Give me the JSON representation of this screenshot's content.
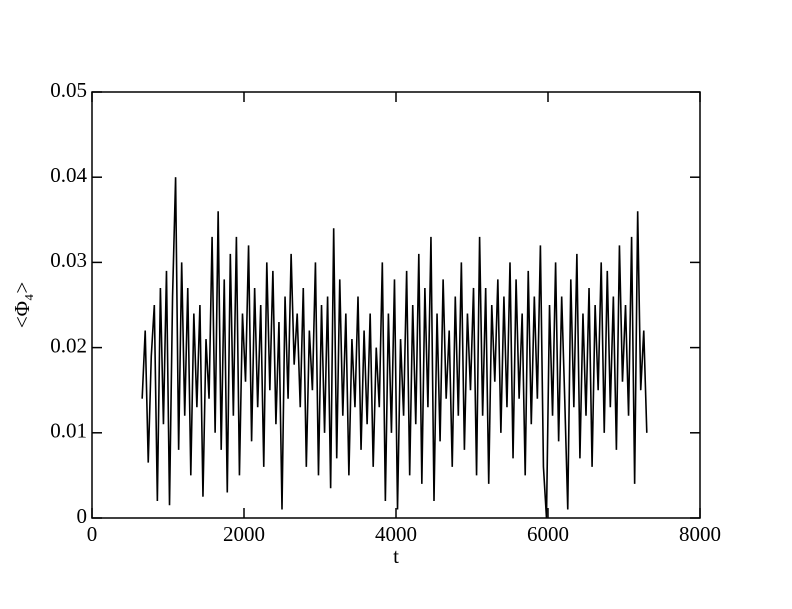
{
  "chart_data": {
    "type": "line",
    "xlabel": "t",
    "ylabel": "<Φ₄>",
    "xlim": [
      0,
      8000
    ],
    "xticks": [
      0,
      2000,
      4000,
      6000,
      8000
    ],
    "ylim": [
      0,
      0.05
    ],
    "yticks": [
      0,
      0.01,
      0.02,
      0.03,
      0.04,
      0.05
    ],
    "series": [
      {
        "color": "#000000",
        "x": [
          660,
          700,
          740,
          780,
          820,
          860,
          900,
          940,
          980,
          1020,
          1060,
          1100,
          1140,
          1180,
          1220,
          1260,
          1300,
          1340,
          1380,
          1420,
          1460,
          1500,
          1540,
          1580,
          1620,
          1660,
          1700,
          1740,
          1780,
          1820,
          1860,
          1900,
          1940,
          1980,
          2020,
          2060,
          2100,
          2140,
          2180,
          2220,
          2260,
          2300,
          2340,
          2380,
          2420,
          2460,
          2500,
          2540,
          2580,
          2620,
          2660,
          2700,
          2740,
          2780,
          2820,
          2860,
          2900,
          2940,
          2980,
          3020,
          3060,
          3100,
          3140,
          3180,
          3220,
          3260,
          3300,
          3340,
          3380,
          3420,
          3460,
          3500,
          3540,
          3580,
          3620,
          3660,
          3700,
          3740,
          3780,
          3820,
          3860,
          3900,
          3940,
          3980,
          4020,
          4060,
          4100,
          4140,
          4180,
          4220,
          4260,
          4300,
          4340,
          4380,
          4420,
          4460,
          4500,
          4540,
          4580,
          4620,
          4660,
          4700,
          4740,
          4780,
          4820,
          4860,
          4900,
          4940,
          4980,
          5020,
          5060,
          5100,
          5140,
          5180,
          5220,
          5260,
          5300,
          5340,
          5380,
          5420,
          5460,
          5500,
          5540,
          5580,
          5620,
          5660,
          5700,
          5740,
          5780,
          5820,
          5860,
          5900,
          5940,
          5980,
          6020,
          6060,
          6100,
          6140,
          6180,
          6220,
          6260,
          6300,
          6340,
          6380,
          6420,
          6460,
          6500,
          6540,
          6580,
          6620,
          6660,
          6700,
          6740,
          6780,
          6820,
          6860,
          6900,
          6940,
          6980,
          7020,
          7060,
          7100,
          7140,
          7180,
          7220,
          7260,
          7300
        ],
        "values": [
          0.014,
          0.022,
          0.0065,
          0.019,
          0.025,
          0.002,
          0.027,
          0.011,
          0.029,
          0.0015,
          0.026,
          0.04,
          0.008,
          0.03,
          0.012,
          0.027,
          0.005,
          0.024,
          0.013,
          0.025,
          0.0025,
          0.021,
          0.014,
          0.033,
          0.01,
          0.036,
          0.008,
          0.028,
          0.003,
          0.031,
          0.012,
          0.033,
          0.005,
          0.024,
          0.016,
          0.032,
          0.009,
          0.027,
          0.013,
          0.025,
          0.006,
          0.03,
          0.015,
          0.029,
          0.011,
          0.023,
          0.001,
          0.026,
          0.014,
          0.031,
          0.018,
          0.024,
          0.013,
          0.027,
          0.006,
          0.022,
          0.015,
          0.03,
          0.005,
          0.025,
          0.01,
          0.026,
          0.0035,
          0.034,
          0.007,
          0.028,
          0.012,
          0.024,
          0.005,
          0.021,
          0.013,
          0.026,
          0.008,
          0.022,
          0.011,
          0.024,
          0.006,
          0.02,
          0.013,
          0.03,
          0.002,
          0.024,
          0.01,
          0.028,
          0.001,
          0.021,
          0.012,
          0.029,
          0.005,
          0.025,
          0.011,
          0.031,
          0.004,
          0.027,
          0.013,
          0.033,
          0.002,
          0.024,
          0.009,
          0.028,
          0.014,
          0.022,
          0.006,
          0.026,
          0.012,
          0.03,
          0.008,
          0.024,
          0.015,
          0.027,
          0.005,
          0.033,
          0.012,
          0.027,
          0.004,
          0.025,
          0.016,
          0.028,
          0.01,
          0.026,
          0.013,
          0.03,
          0.007,
          0.028,
          0.014,
          0.024,
          0.005,
          0.029,
          0.011,
          0.026,
          0.014,
          0.032,
          0.006,
          0.0,
          0.025,
          0.012,
          0.03,
          0.009,
          0.026,
          0.014,
          0.001,
          0.028,
          0.013,
          0.031,
          0.007,
          0.024,
          0.012,
          0.027,
          0.006,
          0.025,
          0.015,
          0.03,
          0.01,
          0.029,
          0.013,
          0.026,
          0.008,
          0.032,
          0.016,
          0.025,
          0.012,
          0.033,
          0.004,
          0.036,
          0.015,
          0.022,
          0.01
        ]
      }
    ]
  }
}
